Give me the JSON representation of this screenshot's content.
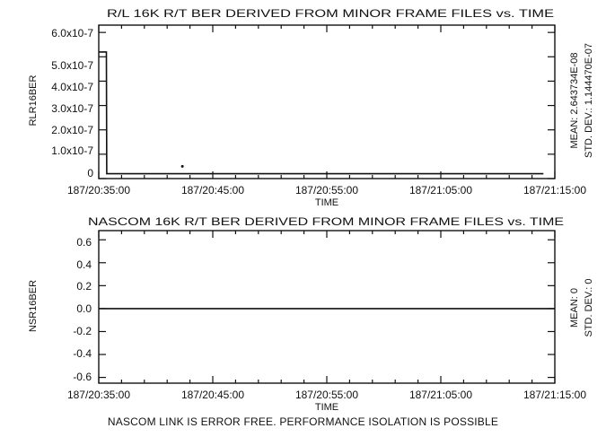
{
  "chart_data": [
    {
      "type": "line",
      "title": "R/L 16K R/T BER DERIVED FROM MINOR FRAME FILES vs. TIME",
      "xlabel": "TIME",
      "ylabel": "RLR16BER",
      "x_ticks": [
        "187/20:35:00",
        "187/20:45:00",
        "187/20:55:00",
        "187/21:05:00",
        "187/21:15:00"
      ],
      "y_ticks": [
        "0",
        "1.0x10-7",
        "2.0x10-7",
        "3.0x10-7",
        "4.0x10-7",
        "5.0x10-7",
        "6.0x10-7"
      ],
      "xlim": [
        "187/20:35:00",
        "187/21:15:00"
      ],
      "ylim": [
        0,
        6.3e-07
      ],
      "stats": [
        "MEAN: 2.643734E-08",
        "STD. DEV.: 1.144470E-07"
      ],
      "series": [
        {
          "x": [
            "187/20:33:00",
            "187/20:33:45",
            "187/20:34:30",
            "187/20:35:15",
            "187/20:35:40",
            "187/20:35:42",
            "187/20:45:00",
            "187/20:55:00",
            "187/21:05:00",
            "187/21:14:00"
          ],
          "y": [
            5.2e-07,
            5.2e-07,
            5.2e-07,
            5.2e-07,
            5.2e-07,
            2e-08,
            2e-08,
            2e-08,
            2e-08,
            2e-08
          ]
        }
      ],
      "annotations": [
        {
          "x": "187/20:42:20",
          "y": 5e-08,
          "marker": "dot"
        }
      ]
    },
    {
      "type": "line",
      "title": "NASCOM 16K R/T BER DERIVED FROM MINOR FRAME FILES vs. TIME",
      "xlabel": "TIME",
      "ylabel": "NSR16BER",
      "x_ticks": [
        "187/20:35:00",
        "187/20:45:00",
        "187/20:55:00",
        "187/21:05:00",
        "187/21:15:00"
      ],
      "y_ticks": [
        "0.6",
        "0.4",
        "0.2",
        "0.0",
        "-0.2",
        "-0.4",
        "-0.6"
      ],
      "xlim": [
        "187/20:35:00",
        "187/21:15:00"
      ],
      "ylim": [
        -0.65,
        0.68
      ],
      "stats": [
        "MEAN: 0",
        "STD. DEV.: 0"
      ],
      "series": [
        {
          "x": [
            "187/20:33:00",
            "187/21:15:00"
          ],
          "y": [
            0.0,
            0.0
          ]
        }
      ]
    }
  ],
  "footer_note": "NASCOM LINK IS ERROR FREE. PERFORMANCE ISOLATION IS POSSIBLE"
}
